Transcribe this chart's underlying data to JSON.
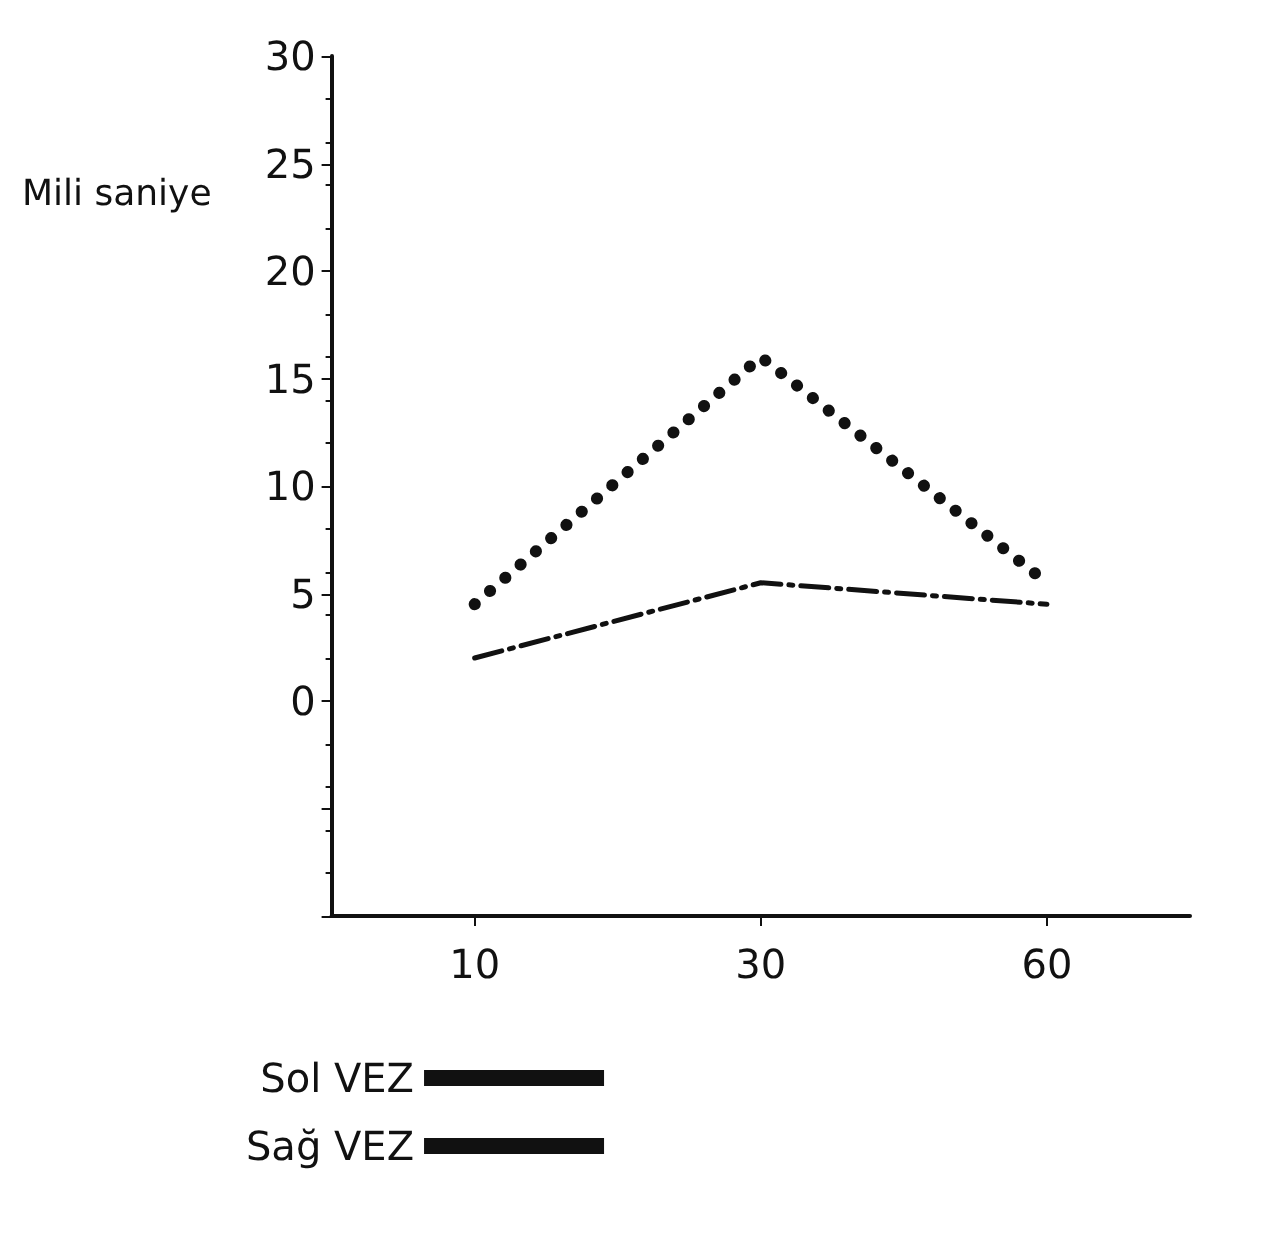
{
  "chart_data": {
    "type": "line",
    "ylabel": "Mili saniye",
    "categories": [
      "10",
      "30",
      "60"
    ],
    "series": [
      {
        "name": "Sol VEZ",
        "color": "#111111",
        "line_style": "dashed",
        "values": [
          2,
          5.5,
          4.5
        ]
      },
      {
        "name": "Sağ VEZ",
        "color": "#111111",
        "line_style": "dotted",
        "values": [
          4.5,
          16,
          5.5
        ]
      }
    ],
    "ylim": [
      -10,
      30
    ],
    "yticks": [
      {
        "value": -10,
        "label": null
      },
      {
        "value": -5,
        "label": null
      },
      0,
      5,
      10,
      15,
      20,
      25,
      30
    ],
    "grid": false,
    "legend": "bottom",
    "marker": "none"
  }
}
